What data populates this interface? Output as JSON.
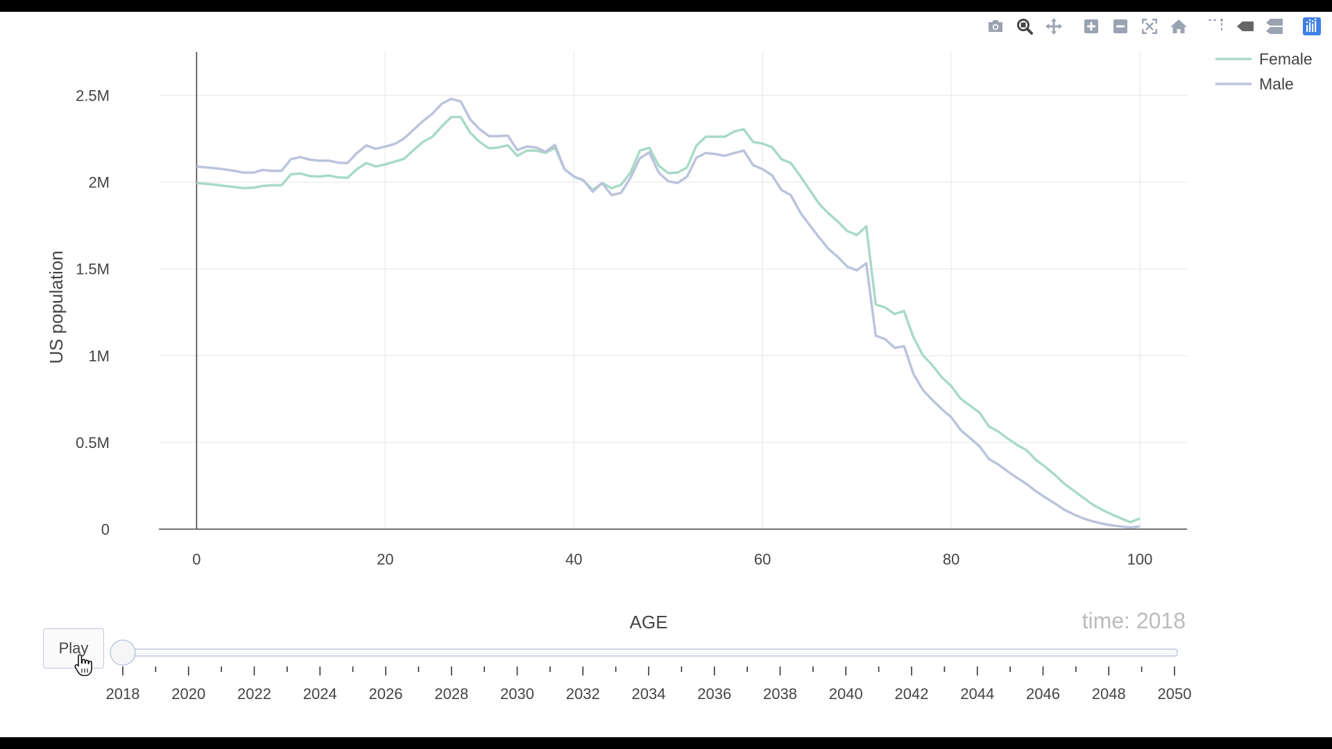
{
  "modebar": {
    "buttons": [
      {
        "name": "camera-icon",
        "active": false
      },
      {
        "name": "zoom-icon",
        "active": true
      },
      {
        "name": "pan-icon",
        "active": false
      },
      {
        "name": "zoom-in-icon",
        "active": false
      },
      {
        "name": "zoom-out-icon",
        "active": false
      },
      {
        "name": "autoscale-icon",
        "active": false
      },
      {
        "name": "home-icon",
        "active": false
      },
      {
        "name": "spike-lines-icon",
        "active": false
      },
      {
        "name": "hover-closest-icon",
        "active": false
      },
      {
        "name": "hover-compare-icon",
        "active": false
      },
      {
        "name": "plotly-logo-icon",
        "active": false
      }
    ],
    "accent": "#3f7fe6"
  },
  "chart_data": {
    "type": "line",
    "xlabel": "AGE",
    "ylabel": "US population",
    "xlim": [
      -4,
      105
    ],
    "ylim": [
      0,
      2750000
    ],
    "x_ticks": [
      0,
      20,
      40,
      60,
      80,
      100
    ],
    "x_tick_labels": [
      "0",
      "20",
      "40",
      "60",
      "80",
      "100"
    ],
    "y_ticks": [
      0,
      500000,
      1000000,
      1500000,
      2000000,
      2500000
    ],
    "y_tick_labels": [
      "0",
      "0.5M",
      "1M",
      "1.5M",
      "2M",
      "2.5M"
    ],
    "grid": true,
    "legend_position": "top-right",
    "x": [
      0,
      1,
      2,
      3,
      4,
      5,
      6,
      7,
      8,
      9,
      10,
      11,
      12,
      13,
      14,
      15,
      16,
      17,
      18,
      19,
      20,
      21,
      22,
      23,
      24,
      25,
      26,
      27,
      28,
      29,
      30,
      31,
      32,
      33,
      34,
      35,
      36,
      37,
      38,
      39,
      40,
      41,
      42,
      43,
      44,
      45,
      46,
      47,
      48,
      49,
      50,
      51,
      52,
      53,
      54,
      55,
      56,
      57,
      58,
      59,
      60,
      61,
      62,
      63,
      64,
      65,
      66,
      67,
      68,
      69,
      70,
      71,
      72,
      73,
      74,
      75,
      76,
      77,
      78,
      79,
      80,
      81,
      82,
      83,
      84,
      85,
      86,
      87,
      88,
      89,
      90,
      91,
      92,
      93,
      94,
      95,
      96,
      97,
      98,
      99,
      100
    ],
    "series": [
      {
        "name": "Female",
        "color": "#a8dac6",
        "values": [
          1995000,
          1990000,
          1985000,
          1978000,
          1972000,
          1965000,
          1968000,
          1978000,
          1982000,
          1982000,
          2045000,
          2050000,
          2035000,
          2032000,
          2038000,
          2028000,
          2025000,
          2075000,
          2110000,
          2090000,
          2102000,
          2118000,
          2135000,
          2185000,
          2232000,
          2262000,
          2322000,
          2375000,
          2375000,
          2285000,
          2232000,
          2195000,
          2200000,
          2212000,
          2152000,
          2182000,
          2182000,
          2168000,
          2198000,
          2075000,
          2032000,
          2010000,
          1955000,
          1995000,
          1965000,
          1985000,
          2055000,
          2182000,
          2198000,
          2095000,
          2052000,
          2055000,
          2085000,
          2212000,
          2262000,
          2262000,
          2262000,
          2292000,
          2305000,
          2232000,
          2222000,
          2202000,
          2132000,
          2110000,
          2035000,
          1955000,
          1875000,
          1820000,
          1772000,
          1718000,
          1695000,
          1745000,
          1295000,
          1278000,
          1240000,
          1258000,
          1105000,
          1002000,
          945000,
          875000,
          825000,
          752000,
          712000,
          672000,
          592000,
          562000,
          522000,
          485000,
          455000,
          398000,
          358000,
          312000,
          262000,
          222000,
          182000,
          142000,
          112000,
          86000,
          62000,
          40000,
          62000
        ]
      },
      {
        "name": "Male",
        "color": "#bbc3dc",
        "values": [
          2090000,
          2085000,
          2080000,
          2073000,
          2065000,
          2055000,
          2055000,
          2070000,
          2065000,
          2065000,
          2132000,
          2145000,
          2130000,
          2124000,
          2124000,
          2112000,
          2110000,
          2168000,
          2212000,
          2192000,
          2205000,
          2220000,
          2252000,
          2302000,
          2352000,
          2395000,
          2452000,
          2480000,
          2465000,
          2362000,
          2305000,
          2265000,
          2265000,
          2268000,
          2185000,
          2205000,
          2200000,
          2175000,
          2215000,
          2075000,
          2032000,
          2012000,
          1945000,
          1995000,
          1925000,
          1938000,
          2025000,
          2138000,
          2172000,
          2055000,
          2005000,
          1995000,
          2032000,
          2142000,
          2168000,
          2162000,
          2152000,
          2168000,
          2182000,
          2098000,
          2075000,
          2040000,
          1955000,
          1925000,
          1825000,
          1752000,
          1682000,
          1615000,
          1568000,
          1512000,
          1492000,
          1532000,
          1115000,
          1095000,
          1045000,
          1055000,
          895000,
          802000,
          745000,
          692000,
          645000,
          572000,
          525000,
          478000,
          405000,
          372000,
          332000,
          295000,
          260000,
          218000,
          182000,
          148000,
          112000,
          85000,
          62000,
          45000,
          32000,
          22000,
          15000,
          10000,
          15000
        ]
      }
    ]
  },
  "slider": {
    "time_label": "time: 2018",
    "play_label": "Play",
    "value": 2018,
    "min": 2018,
    "max": 2050,
    "labels": [
      "2018",
      "2020",
      "2022",
      "2024",
      "2026",
      "2028",
      "2030",
      "2032",
      "2034",
      "2036",
      "2038",
      "2040",
      "2042",
      "2044",
      "2046",
      "2048",
      "2050"
    ]
  }
}
